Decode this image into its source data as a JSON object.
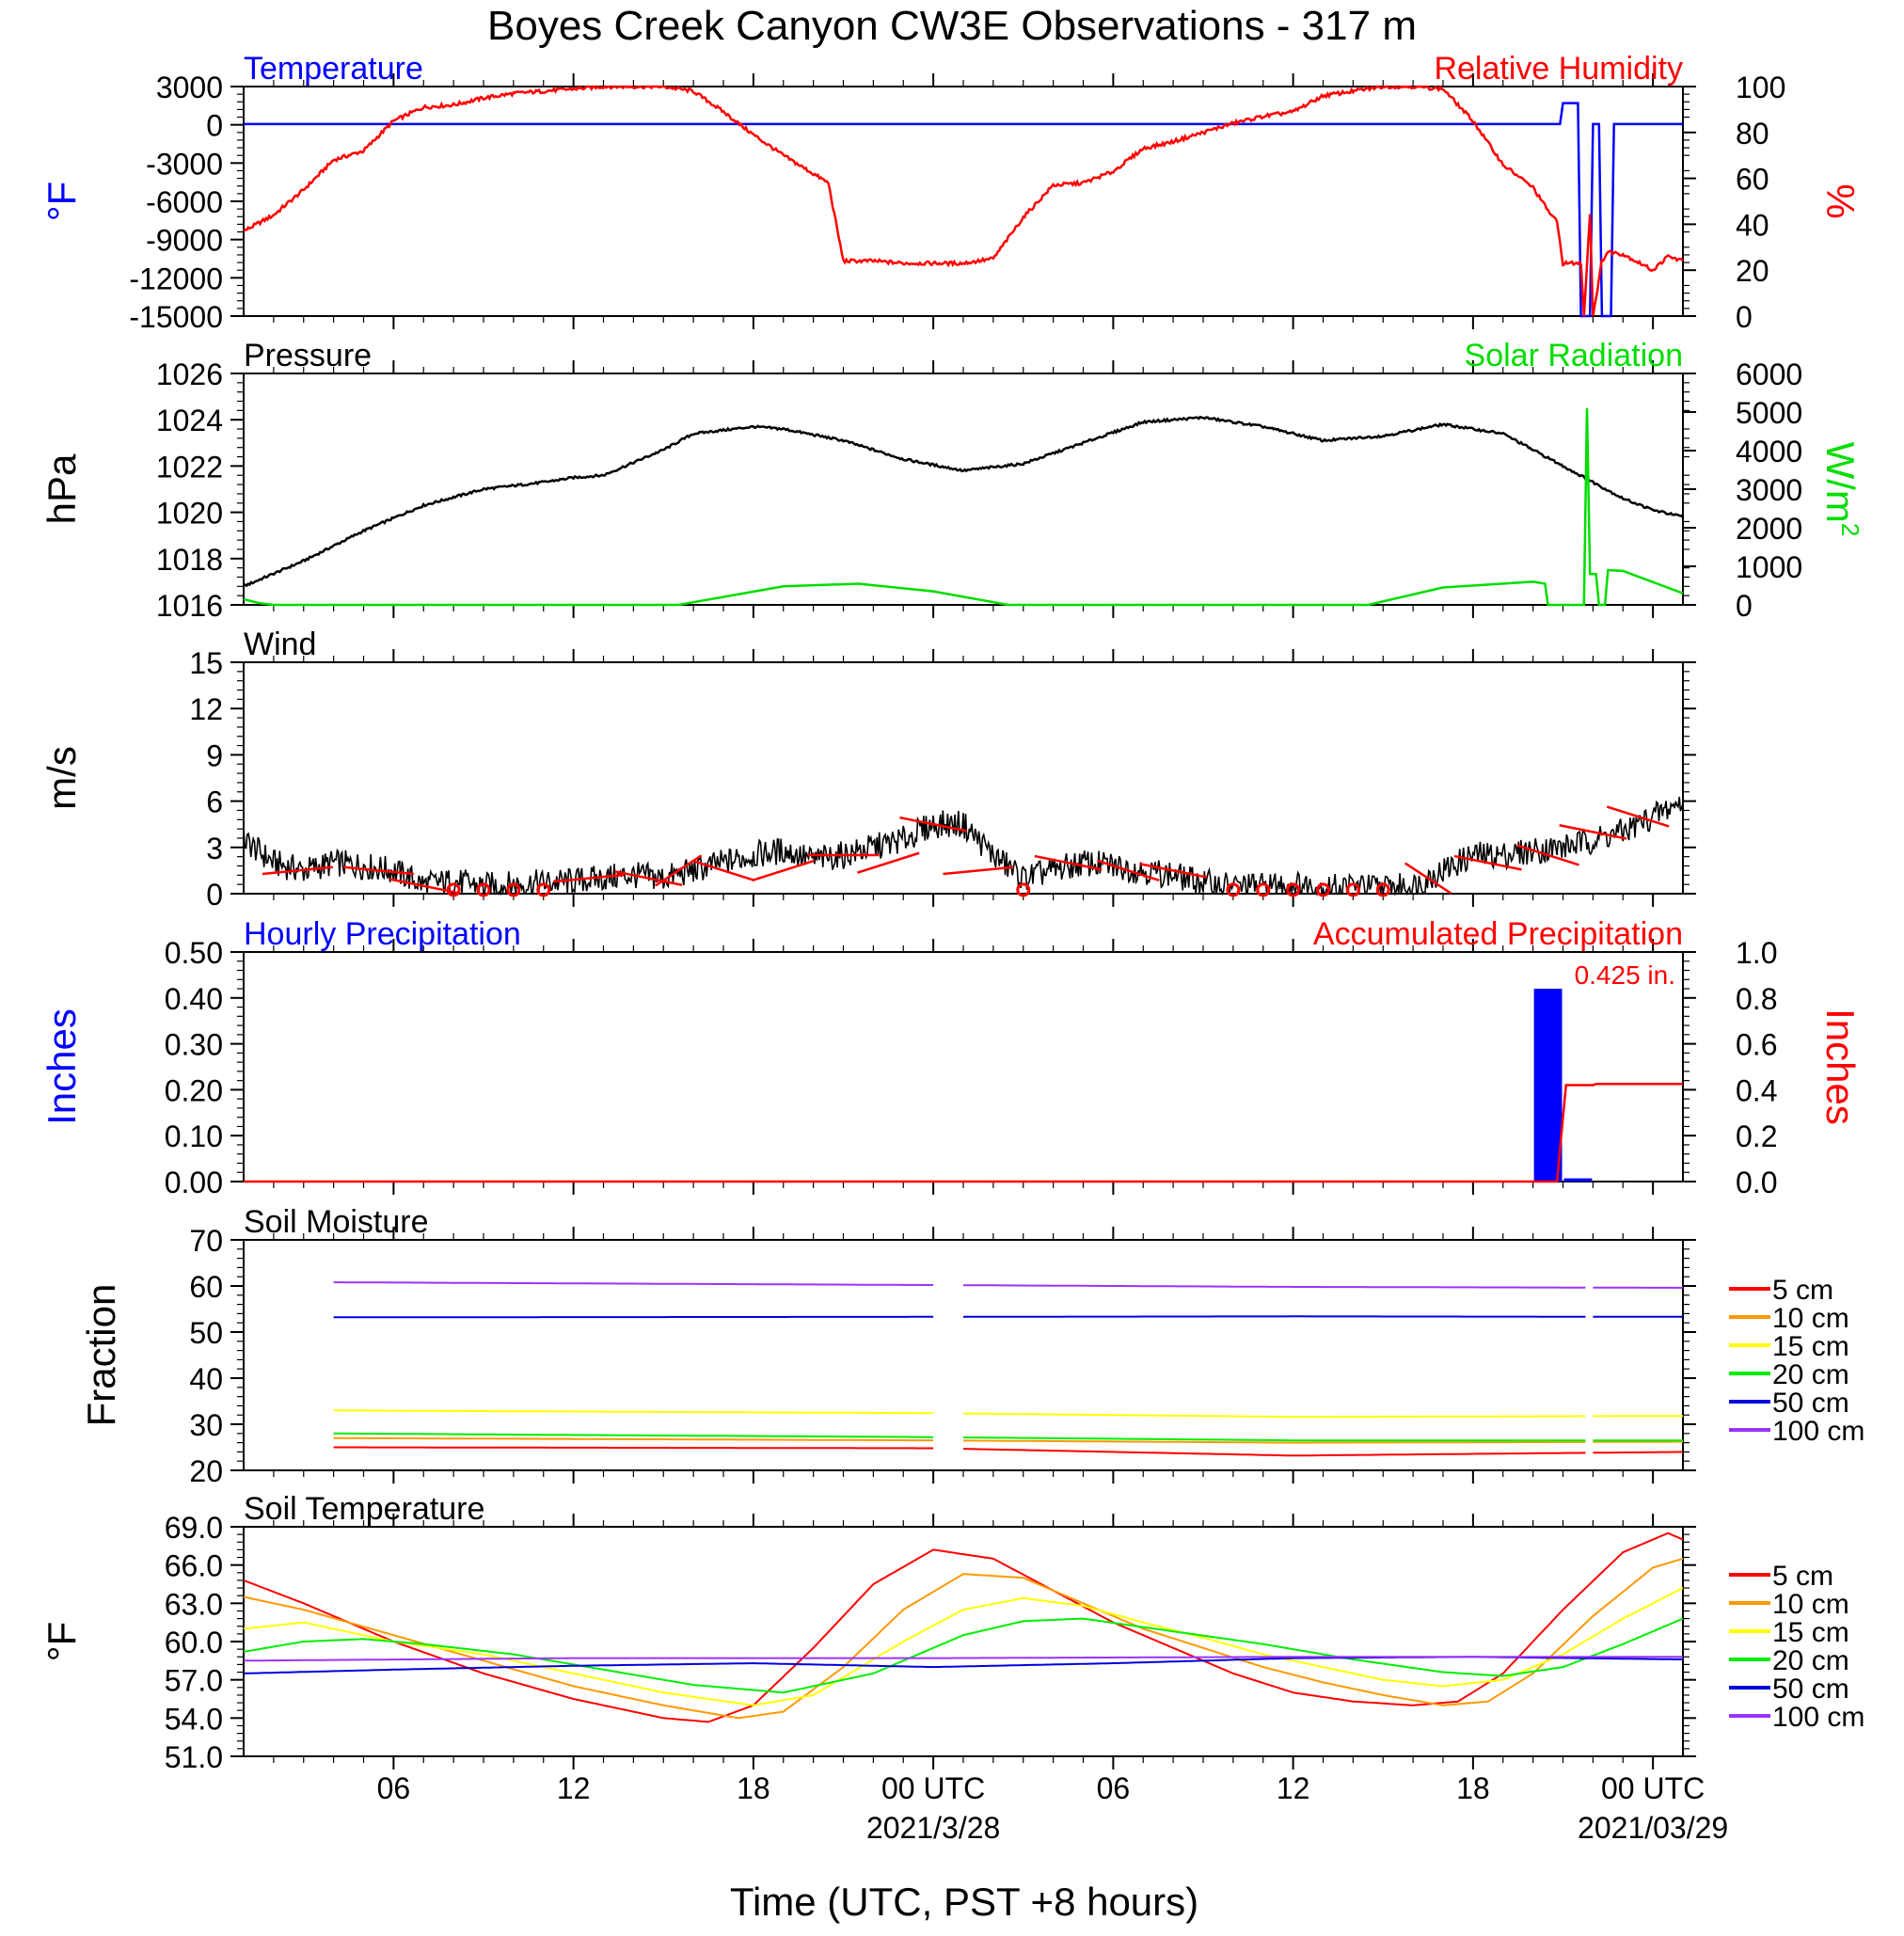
{
  "title": "Boyes Creek Canyon CW3E Observations - 317 m",
  "xlabel": "Time (UTC, PST +8 hours)",
  "x_ticks": [
    {
      "hour": 6,
      "label": "06",
      "sub": ""
    },
    {
      "hour": 12,
      "label": "12",
      "sub": ""
    },
    {
      "hour": 18,
      "label": "18",
      "sub": ""
    },
    {
      "hour": 24,
      "label": "00 UTC",
      "sub": "2021/3/28"
    },
    {
      "hour": 30,
      "label": "06",
      "sub": ""
    },
    {
      "hour": 36,
      "label": "12",
      "sub": ""
    },
    {
      "hour": 42,
      "label": "18",
      "sub": ""
    },
    {
      "hour": 48,
      "label": "00 UTC",
      "sub": "2021/03/29"
    }
  ],
  "x_range_hours": [
    1,
    49
  ],
  "colors": {
    "temperature": "#0000ff",
    "humidity": "#ff0000",
    "pressure": "#000000",
    "solar": "#00dd00",
    "wind": "#000000",
    "barb": "#ff0000",
    "hourly_precip": "#0000ff",
    "accum_precip": "#ff0000",
    "depths": [
      "#ff0000",
      "#ff9900",
      "#ffff00",
      "#00ee00",
      "#0000dd",
      "#9933ff"
    ]
  },
  "chart_data": [
    {
      "type": "line",
      "title_left": "Temperature",
      "title_right": "Relative Humidity",
      "ylabel_left": "°F",
      "ylabel_right": "%",
      "ylim_left": [
        -15000,
        3000
      ],
      "ylim_right": [
        0,
        100
      ],
      "yticks_left": [
        "3000",
        "0",
        "-3000",
        "-6000",
        "-9000",
        "-12000",
        "-15000"
      ],
      "yticks_right": [
        "100",
        "80",
        "60",
        "40",
        "20",
        "0"
      ],
      "series": [
        {
          "axis": "left",
          "x": [
            1,
            44.9,
            45.0,
            45.5,
            45.6,
            45.9,
            46.0,
            46.2,
            46.3,
            46.6,
            46.7,
            49
          ],
          "y": [
            60,
            60,
            1700,
            1700,
            -15000,
            -15000,
            60,
            60,
            -15000,
            -15000,
            60,
            60
          ]
        },
        {
          "axis": "right",
          "x": [
            1,
            2,
            3,
            4,
            5,
            6,
            7,
            8,
            9,
            10,
            11,
            12,
            13,
            14,
            15,
            16,
            17,
            18,
            19,
            20.5,
            21,
            22,
            23,
            24,
            25,
            26,
            27,
            28,
            29,
            30,
            31,
            32,
            33,
            34,
            35,
            36,
            37,
            38,
            39,
            40,
            41,
            42,
            43,
            44,
            44.5,
            44.8,
            45,
            45.6,
            45.7,
            45.9,
            46.0,
            46.3,
            46.5,
            47,
            48,
            48.5,
            49
          ],
          "y": [
            37,
            44,
            55,
            68,
            72,
            85,
            91,
            92,
            95,
            97,
            98,
            99,
            100,
            100,
            100,
            98,
            89,
            79,
            70,
            58,
            24,
            24,
            23,
            23,
            23,
            25,
            43,
            57,
            58,
            63,
            73,
            76,
            80,
            84,
            87,
            89,
            96,
            98,
            100,
            100,
            99,
            85,
            66,
            56,
            46,
            41,
            23,
            23,
            0,
            45,
            0,
            24,
            28,
            27,
            20,
            26,
            24
          ]
        }
      ]
    },
    {
      "type": "line",
      "title_left": "Pressure",
      "title_right": "Solar Radiation",
      "ylabel_left": "hPa",
      "ylabel_right": "W/m",
      "ylabel_right_sup": "2",
      "ylim_left": [
        1016,
        1026
      ],
      "ylim_right": [
        0,
        6000
      ],
      "yticks_left": [
        "1026",
        "1024",
        "1022",
        "1020",
        "1018",
        "1016"
      ],
      "yticks_right": [
        "6000",
        "5000",
        "4000",
        "3000",
        "2000",
        "1000",
        "0"
      ],
      "series": [
        {
          "axis": "left",
          "x": [
            1,
            3,
            5,
            7,
            9,
            11,
            12,
            13,
            15,
            16,
            18,
            19,
            21,
            23,
            25,
            27,
            29,
            31,
            33,
            35,
            37,
            39,
            41,
            43,
            45,
            47,
            48,
            49
          ],
          "y": [
            1016.8,
            1017.9,
            1019.2,
            1020.3,
            1021.0,
            1021.3,
            1021.5,
            1021.6,
            1022.7,
            1023.4,
            1023.7,
            1023.6,
            1023.1,
            1022.3,
            1021.8,
            1022.1,
            1023.0,
            1023.9,
            1024.1,
            1023.7,
            1023.1,
            1023.3,
            1023.8,
            1023.4,
            1022.0,
            1020.6,
            1020.1,
            1019.8
          ]
        },
        {
          "axis": "right",
          "x": [
            1,
            1.5,
            2,
            15.5,
            19,
            21.5,
            24,
            26.5,
            38.5,
            41,
            44,
            44.4,
            44.5,
            45.5,
            45.7,
            45.8,
            45.9,
            46.1,
            46.2,
            46.4,
            46.5,
            47,
            49
          ],
          "y": [
            150,
            50,
            0,
            0,
            480,
            550,
            350,
            0,
            0,
            450,
            600,
            550,
            0,
            0,
            0,
            5100,
            800,
            800,
            0,
            0,
            900,
            880,
            300
          ]
        }
      ]
    },
    {
      "type": "line",
      "title_left": "Wind",
      "ylabel_left": "m/s",
      "ylim_left": [
        0,
        15
      ],
      "yticks_left": [
        "15",
        "12",
        "9",
        "6",
        "3",
        "0"
      ],
      "series": [
        {
          "axis": "left",
          "x": [
            1,
            2,
            3,
            4,
            5,
            6,
            7,
            8,
            9,
            10,
            11,
            12,
            13,
            14,
            15,
            16,
            17,
            18,
            19,
            20,
            21,
            22,
            23,
            24,
            25,
            26,
            27,
            28,
            29,
            30,
            31,
            32,
            33,
            34,
            35,
            36,
            37,
            38,
            39,
            40,
            41,
            42,
            43,
            44,
            45,
            46,
            47,
            48,
            49
          ],
          "y": [
            3.5,
            2.0,
            1.5,
            2.0,
            1.8,
            1.5,
            0.6,
            0.8,
            0.5,
            0.6,
            0.7,
            0.8,
            1.0,
            1.2,
            1.0,
            1.5,
            2.0,
            2.5,
            2.8,
            2.2,
            2.5,
            3.0,
            3.5,
            4.5,
            4.5,
            2.5,
            1.0,
            1.5,
            2.0,
            1.8,
            1.5,
            1.2,
            0.7,
            0.5,
            0.5,
            0.6,
            0.4,
            0.5,
            0.4,
            0.5,
            1.5,
            2.5,
            2.5,
            2.8,
            3.0,
            3.5,
            4.0,
            5.0,
            6.0
          ]
        }
      ],
      "barbs": [
        {
          "x": 2.8,
          "speed": 1.5,
          "dir": 80
        },
        {
          "x": 5.5,
          "speed": 1.5,
          "dir": 280
        },
        {
          "x": 7,
          "speed": 0.5,
          "dir": 290
        },
        {
          "x": 8,
          "speed": 0,
          "dir": 0
        },
        {
          "x": 9,
          "speed": 0,
          "dir": 0
        },
        {
          "x": 10,
          "speed": 0,
          "dir": 0
        },
        {
          "x": 11,
          "speed": 0,
          "dir": 0
        },
        {
          "x": 12.5,
          "speed": 1.0,
          "dir": 260
        },
        {
          "x": 14.5,
          "speed": 1.0,
          "dir": 290
        },
        {
          "x": 15.5,
          "speed": 1.5,
          "dir": 220
        },
        {
          "x": 17,
          "speed": 1.5,
          "dir": 300
        },
        {
          "x": 19,
          "speed": 1.5,
          "dir": 240
        },
        {
          "x": 21,
          "speed": 2.5,
          "dir": 270
        },
        {
          "x": 22.5,
          "speed": 2.0,
          "dir": 240
        },
        {
          "x": 24,
          "speed": 4.5,
          "dir": 290
        },
        {
          "x": 25.5,
          "speed": 1.5,
          "dir": 260
        },
        {
          "x": 27,
          "speed": 0,
          "dir": 0
        },
        {
          "x": 28.5,
          "speed": 2.0,
          "dir": 290
        },
        {
          "x": 30.5,
          "speed": 1.5,
          "dir": 300
        },
        {
          "x": 32,
          "speed": 1.5,
          "dir": 290
        },
        {
          "x": 34,
          "speed": 0,
          "dir": 0
        },
        {
          "x": 35,
          "speed": 0,
          "dir": 0
        },
        {
          "x": 36,
          "speed": 0,
          "dir": 0
        },
        {
          "x": 37,
          "speed": 0,
          "dir": 0
        },
        {
          "x": 38,
          "speed": 0,
          "dir": 0
        },
        {
          "x": 39,
          "speed": 0,
          "dir": 0
        },
        {
          "x": 40.5,
          "speed": 1.0,
          "dir": 320
        },
        {
          "x": 42.5,
          "speed": 2.0,
          "dir": 290
        },
        {
          "x": 44.5,
          "speed": 2.5,
          "dir": 300
        },
        {
          "x": 46,
          "speed": 4.0,
          "dir": 290
        },
        {
          "x": 47.5,
          "speed": 5.0,
          "dir": 300
        }
      ]
    },
    {
      "type": "bar",
      "title_left": "Hourly Precipitation",
      "title_right": "Accumulated Precipitation",
      "annotation": "0.425 in.",
      "ylabel_left": "Inches",
      "ylabel_right": "Inches",
      "ylim_left": [
        0,
        0.5
      ],
      "ylim_right": [
        0,
        1.0
      ],
      "yticks_left": [
        "0.50",
        "0.40",
        "0.30",
        "0.20",
        "0.10",
        "0.00"
      ],
      "yticks_right": [
        "1.0",
        "0.8",
        "0.6",
        "0.4",
        "0.2",
        "0.0"
      ],
      "bars": [
        {
          "x0": 44,
          "x1": 45,
          "value": 0.42
        },
        {
          "x0": 45,
          "x1": 46,
          "value": 0.007
        }
      ],
      "series": [
        {
          "axis": "right",
          "x": [
            1,
            44.8,
            45.1,
            45.2,
            46.0,
            46.1,
            49
          ],
          "y": [
            0,
            0,
            0.42,
            0.42,
            0.42,
            0.425,
            0.425
          ]
        }
      ]
    },
    {
      "type": "line",
      "title_left": "Soil Moisture",
      "ylabel_left": "Fraction",
      "ylim_left": [
        20,
        70
      ],
      "yticks_left": [
        "70",
        "60",
        "50",
        "40",
        "30",
        "20"
      ],
      "legend": [
        "5 cm",
        "10 cm",
        "15 cm",
        "20 cm",
        "50 cm",
        "100 cm"
      ],
      "gap_hours": [
        [
          24.1,
          25.0
        ],
        [
          45.9,
          46.0
        ]
      ],
      "series": [
        {
          "name": "5 cm",
          "x": [
            4,
            24,
            36,
            49
          ],
          "y": [
            25.0,
            24.8,
            23.2,
            24.0
          ]
        },
        {
          "name": "10 cm",
          "x": [
            4,
            24,
            36,
            49
          ],
          "y": [
            27.0,
            26.5,
            26.0,
            26.2
          ]
        },
        {
          "name": "15 cm",
          "x": [
            4,
            24,
            36,
            49
          ],
          "y": [
            33.0,
            32.4,
            31.6,
            31.8
          ]
        },
        {
          "name": "20 cm",
          "x": [
            4,
            24,
            36,
            49
          ],
          "y": [
            28.0,
            27.2,
            26.5,
            26.5
          ]
        },
        {
          "name": "50 cm",
          "x": [
            4,
            24,
            36,
            49
          ],
          "y": [
            53.2,
            53.3,
            53.4,
            53.3
          ]
        },
        {
          "name": "100 cm",
          "x": [
            4,
            24,
            36,
            49
          ],
          "y": [
            60.8,
            60.2,
            59.8,
            59.6
          ]
        }
      ]
    },
    {
      "type": "line",
      "title_left": "Soil Temperature",
      "ylabel_left": "°F",
      "ylim_left": [
        51,
        69
      ],
      "yticks_left": [
        "69.0",
        "66.0",
        "63.0",
        "60.0",
        "57.0",
        "54.0",
        "51.0"
      ],
      "legend": [
        "5 cm",
        "10 cm",
        "15 cm",
        "20 cm",
        "50 cm",
        "100 cm"
      ],
      "series": [
        {
          "name": "5 cm",
          "x": [
            1,
            3,
            6,
            9,
            12,
            15,
            16.5,
            18,
            20,
            22,
            24,
            26,
            28,
            30,
            32,
            34,
            36,
            38,
            40,
            41.5,
            43,
            45,
            47,
            48.5,
            49
          ],
          "y": [
            64.8,
            63.0,
            60.0,
            57.5,
            55.5,
            54.0,
            53.7,
            55.0,
            59.5,
            64.5,
            67.2,
            66.5,
            64.0,
            61.5,
            59.5,
            57.5,
            56.0,
            55.3,
            55.0,
            55.3,
            57.5,
            62.5,
            67.0,
            68.5,
            68.0
          ]
        },
        {
          "name": "10 cm",
          "x": [
            1,
            3,
            6,
            9,
            12,
            15,
            17.5,
            19,
            21,
            23,
            25,
            27,
            29,
            31,
            33,
            35,
            37,
            39,
            41,
            42.5,
            44,
            46,
            48,
            49
          ],
          "y": [
            63.5,
            62.5,
            60.5,
            58.5,
            56.5,
            55.0,
            54.0,
            54.5,
            58.0,
            62.5,
            65.3,
            65.0,
            63.0,
            61.0,
            59.5,
            58.0,
            56.8,
            55.8,
            55.0,
            55.3,
            57.5,
            62.0,
            65.8,
            66.5
          ]
        },
        {
          "name": "15 cm",
          "x": [
            1,
            3,
            6,
            9,
            12,
            15,
            18,
            20,
            23,
            25,
            27,
            29,
            31,
            33,
            35,
            37,
            39,
            41,
            43,
            45,
            47,
            49
          ],
          "y": [
            61.0,
            61.5,
            60.0,
            59.0,
            57.5,
            56.0,
            55.0,
            55.8,
            60.0,
            62.5,
            63.4,
            62.8,
            61.5,
            60.3,
            59.0,
            58.0,
            57.0,
            56.5,
            57.0,
            59.0,
            61.8,
            64.2
          ]
        },
        {
          "name": "20 cm",
          "x": [
            1,
            3,
            5,
            7,
            10,
            13,
            16,
            19,
            22,
            25,
            27,
            29,
            32,
            35,
            38,
            41,
            43,
            45,
            47,
            49
          ],
          "y": [
            59.2,
            60.0,
            60.2,
            59.8,
            59.0,
            57.8,
            56.6,
            56.0,
            57.5,
            60.5,
            61.6,
            61.8,
            60.8,
            59.8,
            58.6,
            57.6,
            57.3,
            58.0,
            59.8,
            61.8
          ]
        },
        {
          "name": "50 cm",
          "x": [
            1,
            6,
            12,
            18,
            24,
            30,
            36,
            42,
            49
          ],
          "y": [
            57.5,
            57.8,
            58.1,
            58.3,
            58.0,
            58.3,
            58.7,
            58.8,
            58.6
          ]
        },
        {
          "name": "100 cm",
          "x": [
            1,
            12,
            24,
            36,
            49
          ],
          "y": [
            58.5,
            58.7,
            58.7,
            58.8,
            58.8
          ]
        }
      ]
    }
  ]
}
